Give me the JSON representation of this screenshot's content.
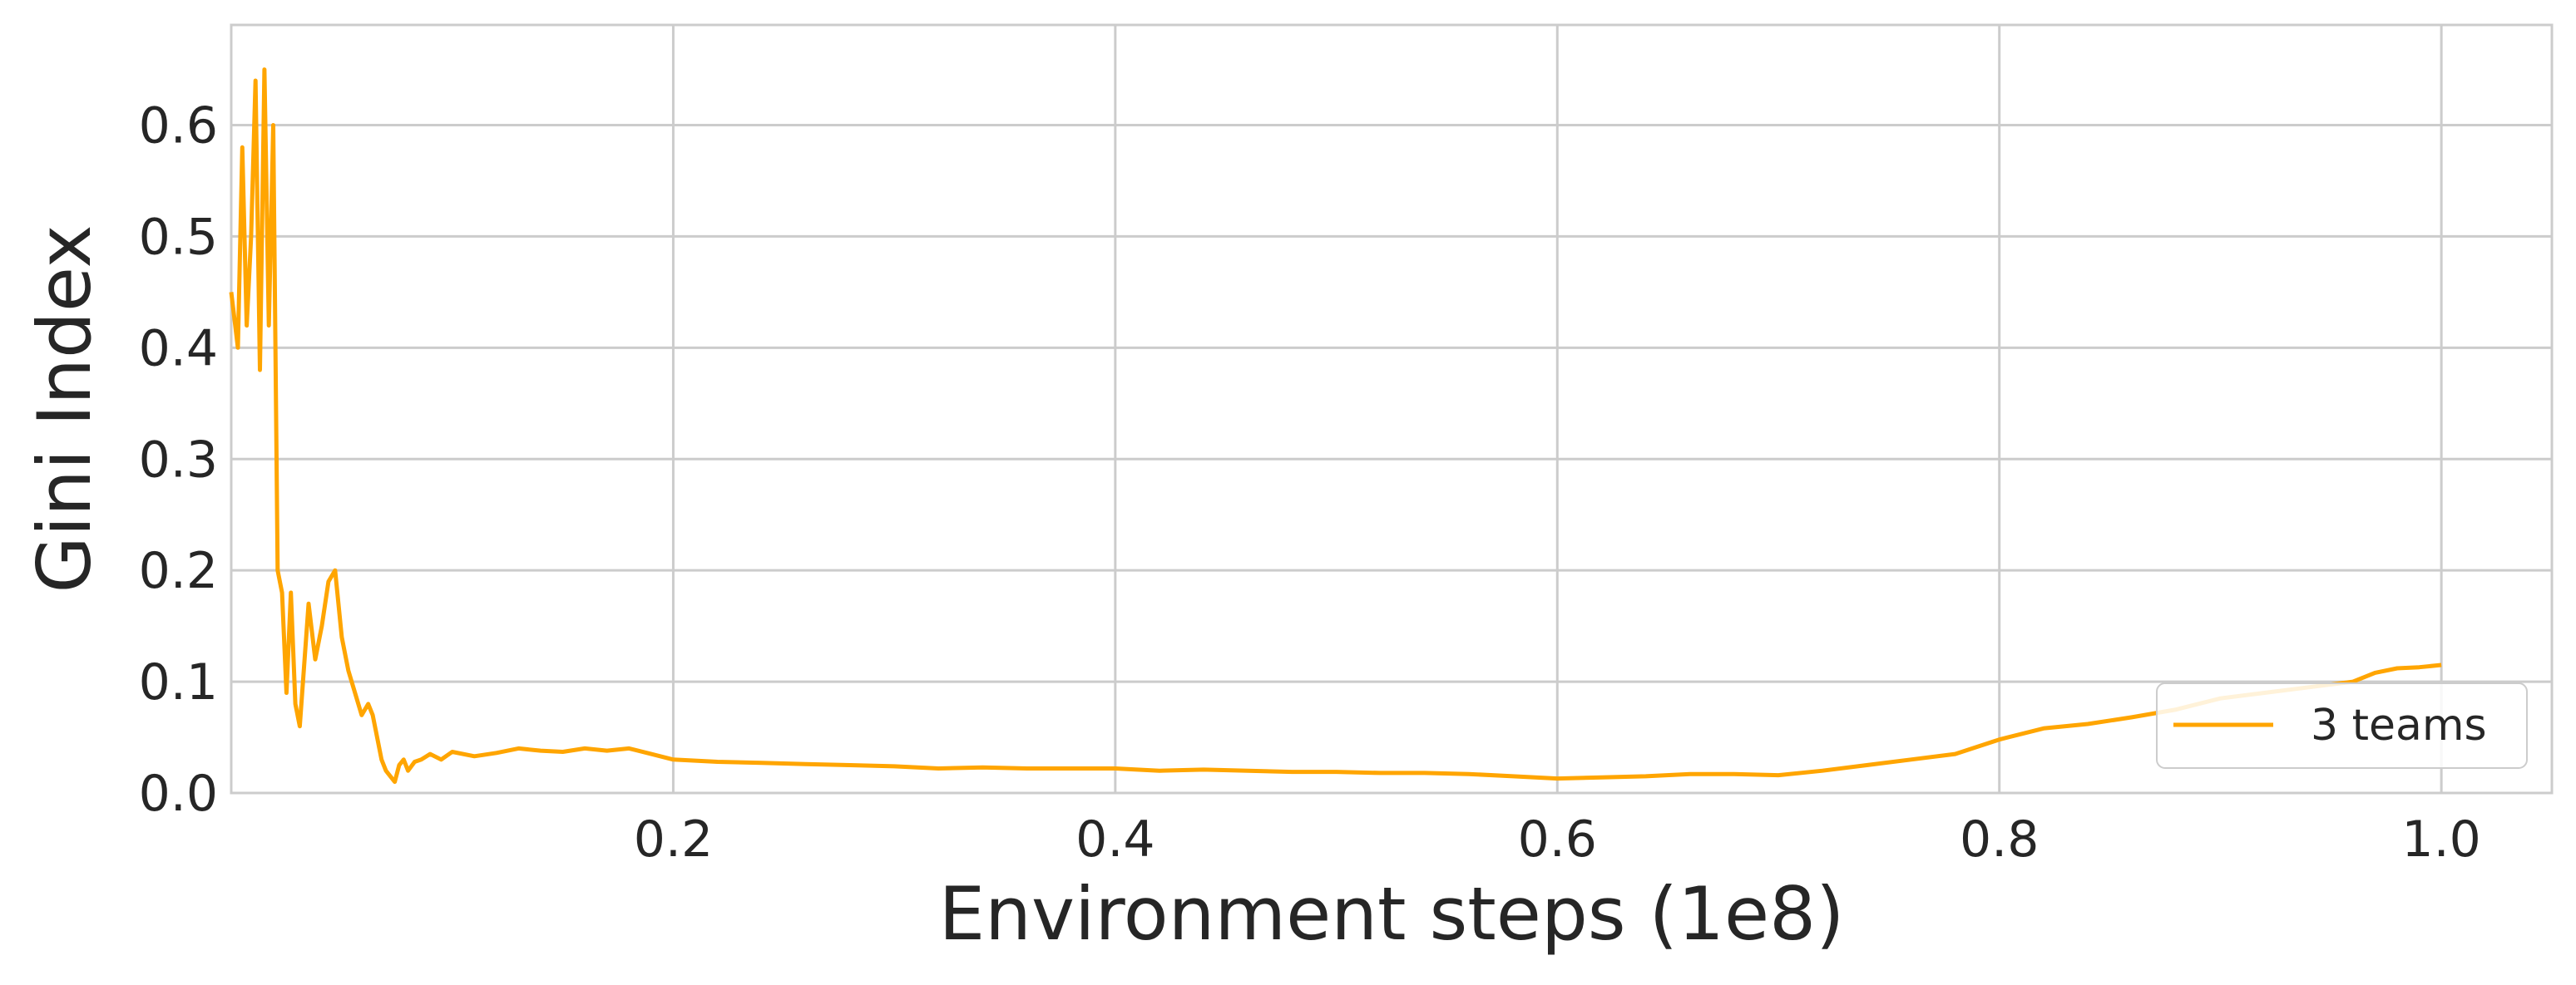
{
  "chart_data": {
    "type": "line",
    "title": "",
    "xlabel": "Environment steps (1e8)",
    "ylabel": "Gini Index",
    "xlim": [
      0.0,
      1.05
    ],
    "ylim": [
      0.0,
      0.69
    ],
    "xticks": [
      {
        "value": 0.2,
        "label": "0.2"
      },
      {
        "value": 0.4,
        "label": "0.4"
      },
      {
        "value": 0.6,
        "label": "0.6"
      },
      {
        "value": 0.8,
        "label": "0.8"
      },
      {
        "value": 1.0,
        "label": "1.0"
      }
    ],
    "yticks": [
      {
        "value": 0.0,
        "label": "0.0"
      },
      {
        "value": 0.1,
        "label": "0.1"
      },
      {
        "value": 0.2,
        "label": "0.2"
      },
      {
        "value": 0.3,
        "label": "0.3"
      },
      {
        "value": 0.4,
        "label": "0.4"
      },
      {
        "value": 0.5,
        "label": "0.5"
      },
      {
        "value": 0.6,
        "label": "0.6"
      }
    ],
    "grid": true,
    "legend_position": "lower-right",
    "colors": {
      "series": "#FFA500",
      "grid": "#CCCCCC",
      "spine": "#CCCCCC",
      "text": "#262626"
    },
    "series": [
      {
        "name": "3 teams",
        "x": [
          0.0,
          0.003,
          0.005,
          0.007,
          0.009,
          0.011,
          0.013,
          0.015,
          0.017,
          0.019,
          0.021,
          0.023,
          0.025,
          0.027,
          0.029,
          0.031,
          0.035,
          0.038,
          0.041,
          0.044,
          0.047,
          0.05,
          0.053,
          0.056,
          0.059,
          0.062,
          0.064,
          0.066,
          0.068,
          0.07,
          0.072,
          0.074,
          0.076,
          0.078,
          0.08,
          0.083,
          0.086,
          0.09,
          0.095,
          0.1,
          0.11,
          0.12,
          0.13,
          0.14,
          0.15,
          0.16,
          0.17,
          0.18,
          0.19,
          0.2,
          0.22,
          0.24,
          0.26,
          0.28,
          0.3,
          0.32,
          0.34,
          0.36,
          0.38,
          0.4,
          0.42,
          0.44,
          0.46,
          0.48,
          0.5,
          0.52,
          0.54,
          0.56,
          0.58,
          0.6,
          0.62,
          0.64,
          0.66,
          0.68,
          0.7,
          0.72,
          0.74,
          0.76,
          0.78,
          0.8,
          0.82,
          0.84,
          0.86,
          0.88,
          0.9,
          0.92,
          0.94,
          0.96,
          0.97,
          0.98,
          0.99,
          1.0
        ],
        "y": [
          0.45,
          0.4,
          0.58,
          0.42,
          0.5,
          0.64,
          0.38,
          0.65,
          0.42,
          0.6,
          0.2,
          0.18,
          0.09,
          0.18,
          0.08,
          0.06,
          0.17,
          0.12,
          0.15,
          0.19,
          0.2,
          0.14,
          0.11,
          0.09,
          0.07,
          0.08,
          0.07,
          0.05,
          0.03,
          0.02,
          0.015,
          0.01,
          0.025,
          0.03,
          0.02,
          0.028,
          0.03,
          0.035,
          0.03,
          0.037,
          0.033,
          0.036,
          0.04,
          0.038,
          0.037,
          0.04,
          0.038,
          0.04,
          0.035,
          0.03,
          0.028,
          0.027,
          0.026,
          0.025,
          0.024,
          0.022,
          0.023,
          0.022,
          0.022,
          0.022,
          0.02,
          0.021,
          0.02,
          0.019,
          0.019,
          0.018,
          0.018,
          0.017,
          0.015,
          0.013,
          0.014,
          0.015,
          0.017,
          0.017,
          0.016,
          0.02,
          0.025,
          0.03,
          0.035,
          0.048,
          0.058,
          0.062,
          0.068,
          0.075,
          0.085,
          0.09,
          0.095,
          0.1,
          0.108,
          0.112,
          0.113,
          0.115
        ]
      }
    ]
  }
}
